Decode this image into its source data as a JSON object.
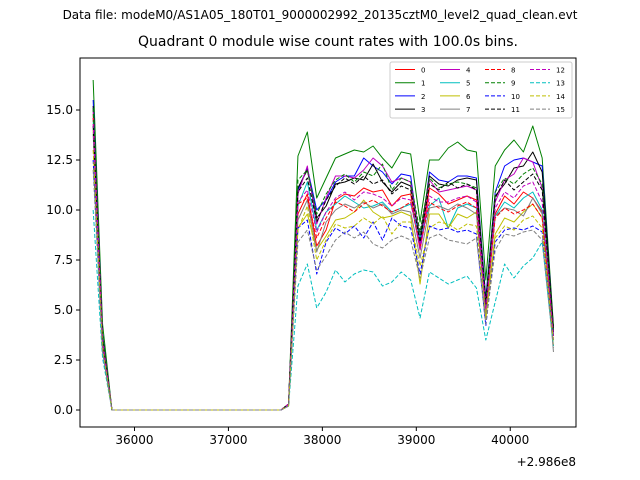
{
  "suptitle": "Data file: modeM0/AS1A05_180T01_9000002992_20135cztM0_level2_quad_clean.evt",
  "chart_data": {
    "type": "line",
    "title": "Quadrant 0 module wise count rates with 100.0s bins.",
    "xlabel": "",
    "ylabel": "",
    "x_offset_label": "+2.986e8",
    "xlim": [
      35420,
      40700
    ],
    "ylim": [
      -0.85,
      17.6
    ],
    "xticks": [
      36000,
      37000,
      38000,
      39000,
      40000
    ],
    "yticks": [
      0.0,
      2.5,
      5.0,
      7.5,
      10.0,
      12.5,
      15.0
    ],
    "xtick_labels": [
      "36000",
      "37000",
      "38000",
      "39000",
      "40000"
    ],
    "ytick_labels": [
      "0.0",
      "2.5",
      "5.0",
      "7.5",
      "10.0",
      "12.5",
      "15.0"
    ],
    "grid": false,
    "legend_position": "top-right",
    "x": [
      35560,
      35660,
      35760,
      35860,
      35960,
      36060,
      36160,
      36260,
      36360,
      36460,
      36560,
      36660,
      36760,
      36860,
      36960,
      37060,
      37160,
      37260,
      37360,
      37460,
      37560,
      37640,
      37740,
      37840,
      37940,
      38040,
      38140,
      38240,
      38340,
      38440,
      38540,
      38640,
      38740,
      38840,
      38940,
      39040,
      39140,
      39240,
      39340,
      39440,
      39540,
      39640,
      39740,
      39840,
      39940,
      40040,
      40140,
      40240,
      40340,
      40460
    ],
    "series": [
      {
        "name": "0",
        "color": "#ff0000",
        "dash": "solid",
        "values": [
          14.8,
          3.6,
          0.0,
          0.0,
          0.0,
          0.0,
          0.0,
          0.0,
          0.0,
          0.0,
          0.0,
          0.0,
          0.0,
          0.0,
          0.0,
          0.0,
          0.0,
          0.0,
          0.0,
          0.0,
          0.0,
          0.3,
          9.8,
          10.8,
          8.2,
          9.0,
          10.5,
          10.8,
          10.7,
          11.1,
          10.9,
          11.0,
          10.2,
          10.7,
          10.8,
          8.0,
          11.1,
          10.8,
          10.3,
          10.5,
          10.7,
          10.5,
          5.0,
          9.8,
          10.7,
          10.3,
          10.9,
          10.6,
          9.9,
          3.7
        ]
      },
      {
        "name": "1",
        "color": "#008000",
        "dash": "solid",
        "values": [
          16.5,
          4.3,
          0.0,
          0.0,
          0.0,
          0.0,
          0.0,
          0.0,
          0.0,
          0.0,
          0.0,
          0.0,
          0.0,
          0.0,
          0.0,
          0.0,
          0.0,
          0.0,
          0.0,
          0.0,
          0.0,
          0.3,
          12.7,
          13.9,
          10.6,
          11.6,
          12.6,
          12.8,
          13.0,
          12.9,
          13.2,
          12.6,
          12.1,
          12.9,
          12.8,
          9.4,
          12.5,
          12.5,
          13.1,
          13.4,
          13.0,
          12.9,
          6.5,
          12.2,
          13.0,
          13.5,
          12.9,
          14.2,
          12.6,
          4.2
        ]
      },
      {
        "name": "2",
        "color": "#0000ff",
        "dash": "solid",
        "values": [
          15.5,
          3.8,
          0.0,
          0.0,
          0.0,
          0.0,
          0.0,
          0.0,
          0.0,
          0.0,
          0.0,
          0.0,
          0.0,
          0.0,
          0.0,
          0.0,
          0.0,
          0.0,
          0.0,
          0.0,
          0.0,
          0.3,
          11.0,
          12.1,
          10.0,
          10.5,
          11.4,
          11.7,
          11.7,
          12.6,
          12.2,
          11.9,
          11.3,
          11.8,
          11.7,
          8.2,
          11.9,
          11.5,
          11.4,
          11.7,
          11.7,
          11.6,
          5.6,
          10.9,
          12.2,
          12.5,
          12.6,
          12.4,
          12.2,
          4.0
        ]
      },
      {
        "name": "3",
        "color": "#000000",
        "dash": "solid",
        "values": [
          15.2,
          3.7,
          0.0,
          0.0,
          0.0,
          0.0,
          0.0,
          0.0,
          0.0,
          0.0,
          0.0,
          0.0,
          0.0,
          0.0,
          0.0,
          0.0,
          0.0,
          0.0,
          0.0,
          0.0,
          0.0,
          0.3,
          11.1,
          12.0,
          9.6,
          10.2,
          11.3,
          11.4,
          11.6,
          11.5,
          12.3,
          11.4,
          10.9,
          11.4,
          11.2,
          8.6,
          11.7,
          11.3,
          11.2,
          11.5,
          11.6,
          11.5,
          5.4,
          10.7,
          11.3,
          12.1,
          12.2,
          12.9,
          11.9,
          4.1
        ]
      },
      {
        "name": "4",
        "color": "#bf00bf",
        "dash": "solid",
        "values": [
          15.0,
          3.6,
          0.0,
          0.0,
          0.0,
          0.0,
          0.0,
          0.0,
          0.0,
          0.0,
          0.0,
          0.0,
          0.0,
          0.0,
          0.0,
          0.0,
          0.0,
          0.0,
          0.0,
          0.0,
          0.0,
          0.3,
          10.8,
          12.2,
          9.3,
          10.6,
          11.7,
          11.7,
          11.6,
          12.0,
          12.6,
          12.2,
          11.4,
          11.6,
          11.4,
          8.3,
          11.5,
          10.9,
          11.0,
          11.1,
          11.2,
          11.0,
          5.3,
          10.4,
          11.5,
          11.8,
          12.6,
          12.4,
          11.1,
          3.9
        ]
      },
      {
        "name": "5",
        "color": "#00bfbf",
        "dash": "solid",
        "values": [
          14.5,
          3.5,
          0.0,
          0.0,
          0.0,
          0.0,
          0.0,
          0.0,
          0.0,
          0.0,
          0.0,
          0.0,
          0.0,
          0.0,
          0.0,
          0.0,
          0.0,
          0.0,
          0.0,
          0.0,
          0.0,
          0.3,
          10.2,
          11.4,
          9.0,
          9.9,
          10.3,
          10.7,
          10.4,
          10.1,
          10.2,
          10.4,
          9.9,
          10.1,
          10.3,
          8.6,
          10.2,
          10.6,
          9.1,
          10.1,
          10.3,
          10.1,
          5.0,
          9.7,
          10.4,
          10.1,
          10.6,
          10.9,
          10.0,
          3.8
        ]
      },
      {
        "name": "6",
        "color": "#bfbf00",
        "dash": "solid",
        "values": [
          14.0,
          3.4,
          0.0,
          0.0,
          0.0,
          0.0,
          0.0,
          0.0,
          0.0,
          0.0,
          0.0,
          0.0,
          0.0,
          0.0,
          0.0,
          0.0,
          0.0,
          0.0,
          0.0,
          0.0,
          0.0,
          0.3,
          9.1,
          9.8,
          8.0,
          8.7,
          9.5,
          9.6,
          9.9,
          10.5,
          9.9,
          9.6,
          9.7,
          9.9,
          9.7,
          6.3,
          9.8,
          9.8,
          9.1,
          9.8,
          9.6,
          9.9,
          4.6,
          8.8,
          9.6,
          9.4,
          9.9,
          10.3,
          9.6,
          3.2
        ]
      },
      {
        "name": "7",
        "color": "#808080",
        "dash": "solid",
        "values": [
          13.8,
          3.3,
          0.0,
          0.0,
          0.0,
          0.0,
          0.0,
          0.0,
          0.0,
          0.0,
          0.0,
          0.0,
          0.0,
          0.0,
          0.0,
          0.0,
          0.0,
          0.0,
          0.0,
          0.0,
          0.0,
          0.3,
          9.5,
          10.5,
          7.9,
          9.4,
          10.0,
          10.3,
          10.1,
          10.4,
          10.1,
          10.3,
          9.8,
          10.0,
          9.9,
          7.6,
          10.1,
          10.2,
          10.0,
          10.3,
          10.1,
          9.8,
          4.8,
          9.7,
          10.1,
          10.0,
          9.7,
          10.6,
          9.8,
          2.9
        ]
      },
      {
        "name": "8",
        "color": "#ff0000",
        "dash": "dashed",
        "values": [
          14.6,
          3.5,
          0.0,
          0.0,
          0.0,
          0.0,
          0.0,
          0.0,
          0.0,
          0.0,
          0.0,
          0.0,
          0.0,
          0.0,
          0.0,
          0.0,
          0.0,
          0.0,
          0.0,
          0.0,
          0.0,
          0.3,
          10.3,
          10.6,
          8.6,
          9.6,
          10.4,
          10.2,
          9.9,
          10.3,
          10.5,
          10.2,
          9.9,
          10.1,
          10.4,
          8.1,
          10.4,
          10.1,
          9.9,
          10.2,
          10.4,
          10.1,
          5.1,
          9.6,
          10.1,
          9.8,
          10.0,
          10.3,
          9.6,
          3.6
        ]
      },
      {
        "name": "9",
        "color": "#008000",
        "dash": "dashed",
        "values": [
          15.1,
          3.7,
          0.0,
          0.0,
          0.0,
          0.0,
          0.0,
          0.0,
          0.0,
          0.0,
          0.0,
          0.0,
          0.0,
          0.0,
          0.0,
          0.0,
          0.0,
          0.0,
          0.0,
          0.0,
          0.0,
          0.3,
          11.5,
          12.0,
          9.8,
          10.8,
          11.5,
          11.8,
          11.4,
          11.9,
          11.7,
          12.3,
          11.0,
          11.6,
          11.4,
          8.9,
          11.6,
          11.1,
          11.3,
          11.4,
          11.3,
          11.1,
          5.4,
          10.9,
          11.6,
          11.3,
          11.8,
          12.1,
          11.3,
          4.0
        ]
      },
      {
        "name": "10",
        "color": "#0000ff",
        "dash": "dashed",
        "values": [
          12.5,
          3.0,
          0.0,
          0.0,
          0.0,
          0.0,
          0.0,
          0.0,
          0.0,
          0.0,
          0.0,
          0.0,
          0.0,
          0.0,
          0.0,
          0.0,
          0.0,
          0.0,
          0.0,
          0.0,
          0.0,
          0.2,
          9.1,
          9.5,
          6.8,
          8.4,
          9.1,
          8.8,
          9.2,
          8.6,
          9.4,
          8.5,
          9.6,
          9.2,
          9.1,
          6.8,
          9.2,
          9.0,
          9.1,
          8.9,
          9.0,
          8.8,
          4.2,
          8.4,
          9.0,
          9.1,
          9.0,
          9.2,
          8.9,
          3.5
        ]
      },
      {
        "name": "11",
        "color": "#000000",
        "dash": "dashed",
        "values": [
          14.2,
          3.4,
          0.0,
          0.0,
          0.0,
          0.0,
          0.0,
          0.0,
          0.0,
          0.0,
          0.0,
          0.0,
          0.0,
          0.0,
          0.0,
          0.0,
          0.0,
          0.0,
          0.0,
          0.0,
          0.0,
          0.3,
          10.9,
          11.6,
          9.4,
          10.5,
          11.2,
          11.6,
          11.3,
          11.7,
          11.3,
          11.5,
          10.8,
          11.2,
          11.0,
          8.4,
          11.3,
          11.0,
          11.4,
          11.1,
          11.3,
          11.0,
          5.3,
          10.6,
          11.5,
          11.0,
          11.4,
          11.8,
          11.0,
          3.9
        ]
      },
      {
        "name": "12",
        "color": "#bf00bf",
        "dash": "dashed",
        "values": [
          14.3,
          3.4,
          0.0,
          0.0,
          0.0,
          0.0,
          0.0,
          0.0,
          0.0,
          0.0,
          0.0,
          0.0,
          0.0,
          0.0,
          0.0,
          0.0,
          0.0,
          0.0,
          0.0,
          0.0,
          0.0,
          0.3,
          10.4,
          11.0,
          8.9,
          9.9,
          10.6,
          10.9,
          10.5,
          10.9,
          10.8,
          10.6,
          10.2,
          10.6,
          10.5,
          8.0,
          10.7,
          10.4,
          10.4,
          10.6,
          10.7,
          10.4,
          5.0,
          10.1,
          10.9,
          10.6,
          11.2,
          11.4,
          10.4,
          3.7
        ]
      },
      {
        "name": "13",
        "color": "#00bfbf",
        "dash": "dashed",
        "values": [
          10.0,
          2.6,
          0.0,
          0.0,
          0.0,
          0.0,
          0.0,
          0.0,
          0.0,
          0.0,
          0.0,
          0.0,
          0.0,
          0.0,
          0.0,
          0.0,
          0.0,
          0.0,
          0.0,
          0.0,
          0.0,
          0.2,
          6.2,
          7.3,
          5.1,
          5.9,
          7.0,
          6.4,
          6.8,
          7.0,
          6.9,
          6.2,
          6.4,
          6.9,
          6.5,
          4.6,
          6.9,
          6.6,
          6.3,
          6.5,
          6.7,
          6.1,
          3.5,
          5.4,
          7.3,
          6.6,
          7.2,
          7.6,
          8.4,
          3.2
        ]
      },
      {
        "name": "14",
        "color": "#bfbf00",
        "dash": "dashed",
        "values": [
          13.0,
          3.1,
          0.0,
          0.0,
          0.0,
          0.0,
          0.0,
          0.0,
          0.0,
          0.0,
          0.0,
          0.0,
          0.0,
          0.0,
          0.0,
          0.0,
          0.0,
          0.0,
          0.0,
          0.0,
          0.0,
          0.2,
          9.0,
          10.2,
          7.5,
          8.5,
          9.3,
          9.1,
          9.2,
          9.6,
          9.3,
          9.7,
          8.8,
          9.4,
          9.4,
          7.2,
          9.1,
          9.4,
          9.3,
          9.0,
          9.3,
          9.2,
          4.6,
          8.6,
          9.2,
          9.0,
          9.5,
          9.7,
          9.1,
          3.4
        ]
      },
      {
        "name": "15",
        "color": "#808080",
        "dash": "dashed",
        "values": [
          12.0,
          2.9,
          0.0,
          0.0,
          0.0,
          0.0,
          0.0,
          0.0,
          0.0,
          0.0,
          0.0,
          0.0,
          0.0,
          0.0,
          0.0,
          0.0,
          0.0,
          0.0,
          0.0,
          0.0,
          0.0,
          0.2,
          8.4,
          9.0,
          7.0,
          7.7,
          8.5,
          8.9,
          8.6,
          8.9,
          8.3,
          8.1,
          8.5,
          8.7,
          8.5,
          6.6,
          8.6,
          8.8,
          8.5,
          8.4,
          8.3,
          8.6,
          4.3,
          8.0,
          8.8,
          8.7,
          8.9,
          9.0,
          8.5,
          3.1
        ]
      }
    ]
  }
}
